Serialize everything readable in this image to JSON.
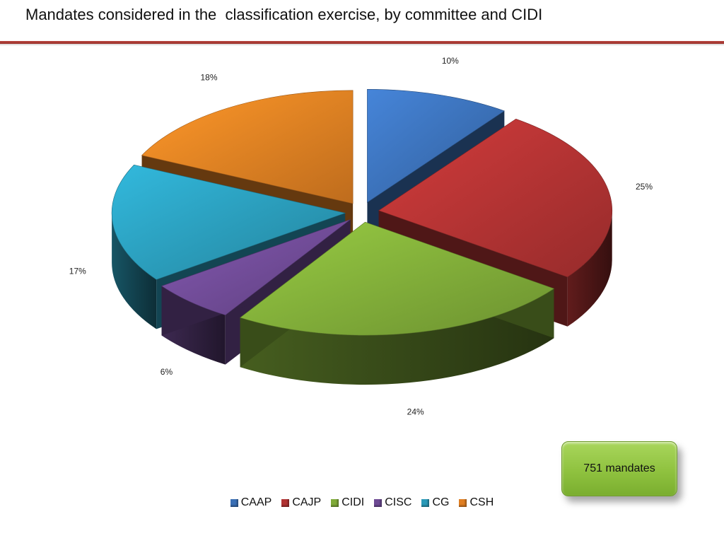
{
  "title": "Mandates considered in the  classification exercise, by committee and CIDI",
  "badge": {
    "text": "751 mandates"
  },
  "chart_data": {
    "type": "pie",
    "title": "Mandates considered in the  classification exercise, by committee and CIDI",
    "slices": [
      {
        "label": "CAAP",
        "value": 10,
        "display": "10%",
        "color": "#3a6fb5"
      },
      {
        "label": "CAJP",
        "value": 25,
        "display": "25%",
        "color": "#b03232"
      },
      {
        "label": "CIDI",
        "value": 24,
        "display": "24%",
        "color": "#7faa38"
      },
      {
        "label": "CISC",
        "value": 6,
        "display": "6%",
        "color": "#6e4a94"
      },
      {
        "label": "CG",
        "value": 17,
        "display": "17%",
        "color": "#2a9ab8"
      },
      {
        "label": "CSH",
        "value": 18,
        "display": "18%",
        "color": "#e07f22"
      }
    ],
    "legend_position": "bottom",
    "exploded": true,
    "three_d": true
  }
}
